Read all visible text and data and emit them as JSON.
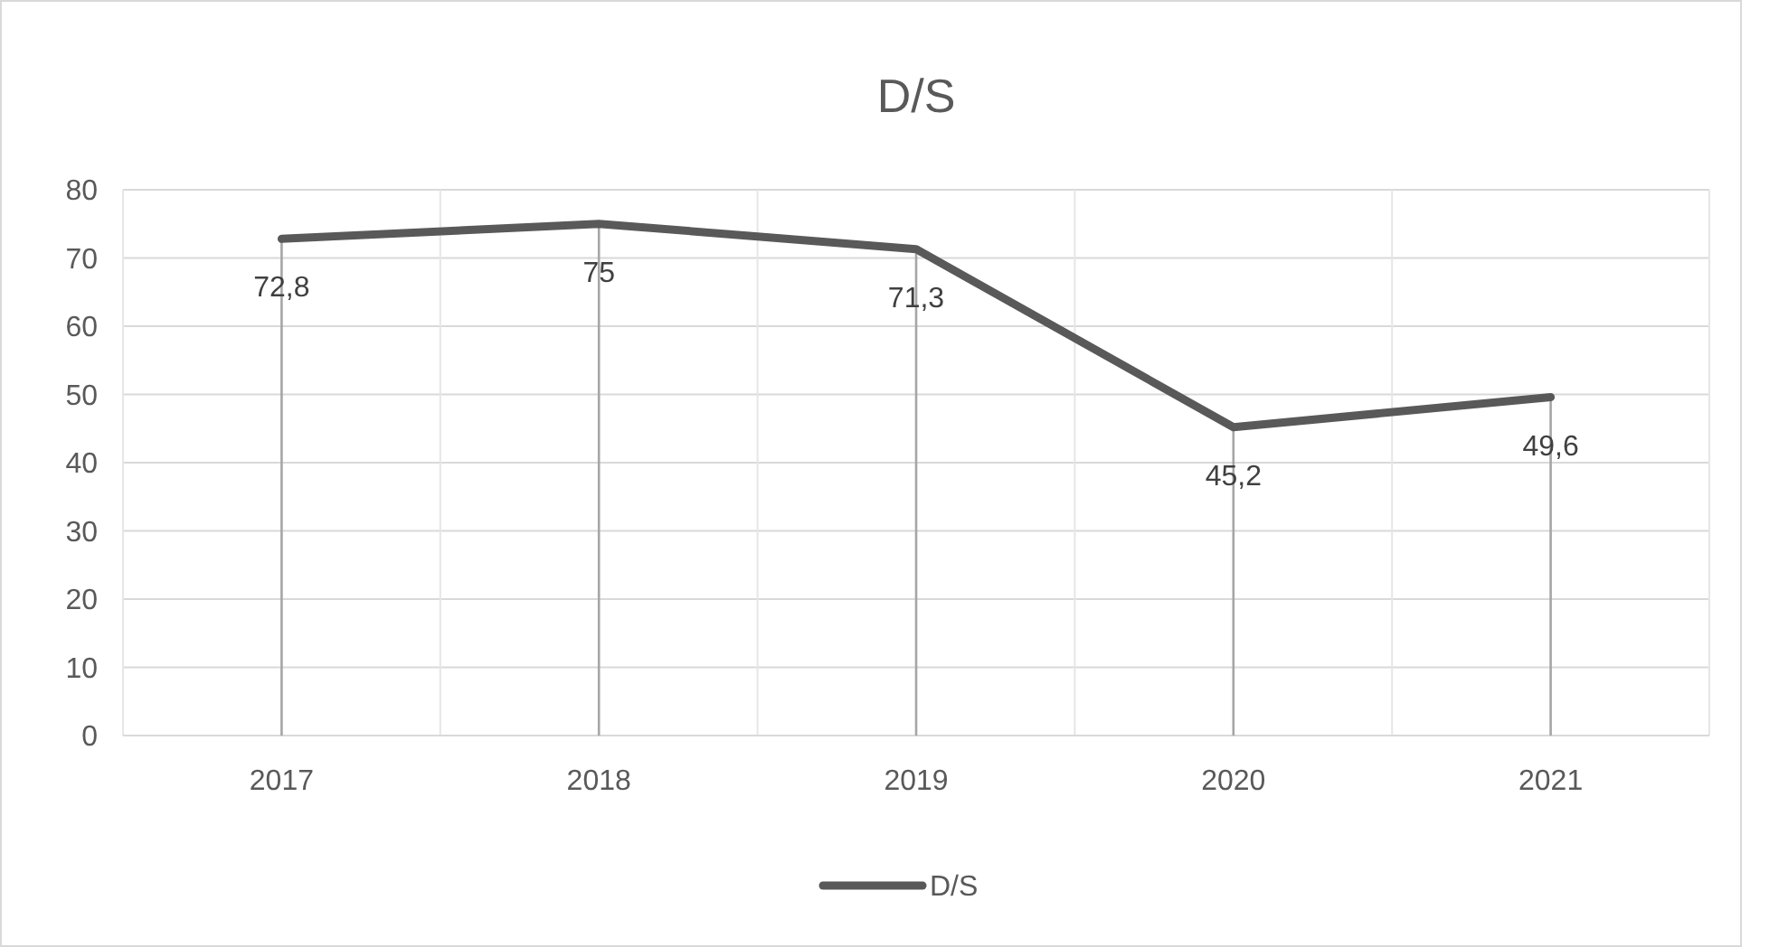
{
  "chart_data": {
    "type": "line",
    "title": "D/S",
    "categories": [
      "2017",
      "2018",
      "2019",
      "2020",
      "2021"
    ],
    "series": [
      {
        "name": "D/S",
        "color": "#595959",
        "values": [
          72.8,
          75,
          71.3,
          45.2,
          49.6
        ],
        "value_labels": [
          "72,8",
          "75",
          "71,3",
          "45,2",
          "49,6"
        ]
      }
    ],
    "ylim": [
      0,
      80
    ],
    "yticks": [
      0,
      10,
      20,
      30,
      40,
      50,
      60,
      70,
      80
    ],
    "grid": true,
    "legend": "bottom",
    "marker": "none",
    "line_style": "solid"
  }
}
